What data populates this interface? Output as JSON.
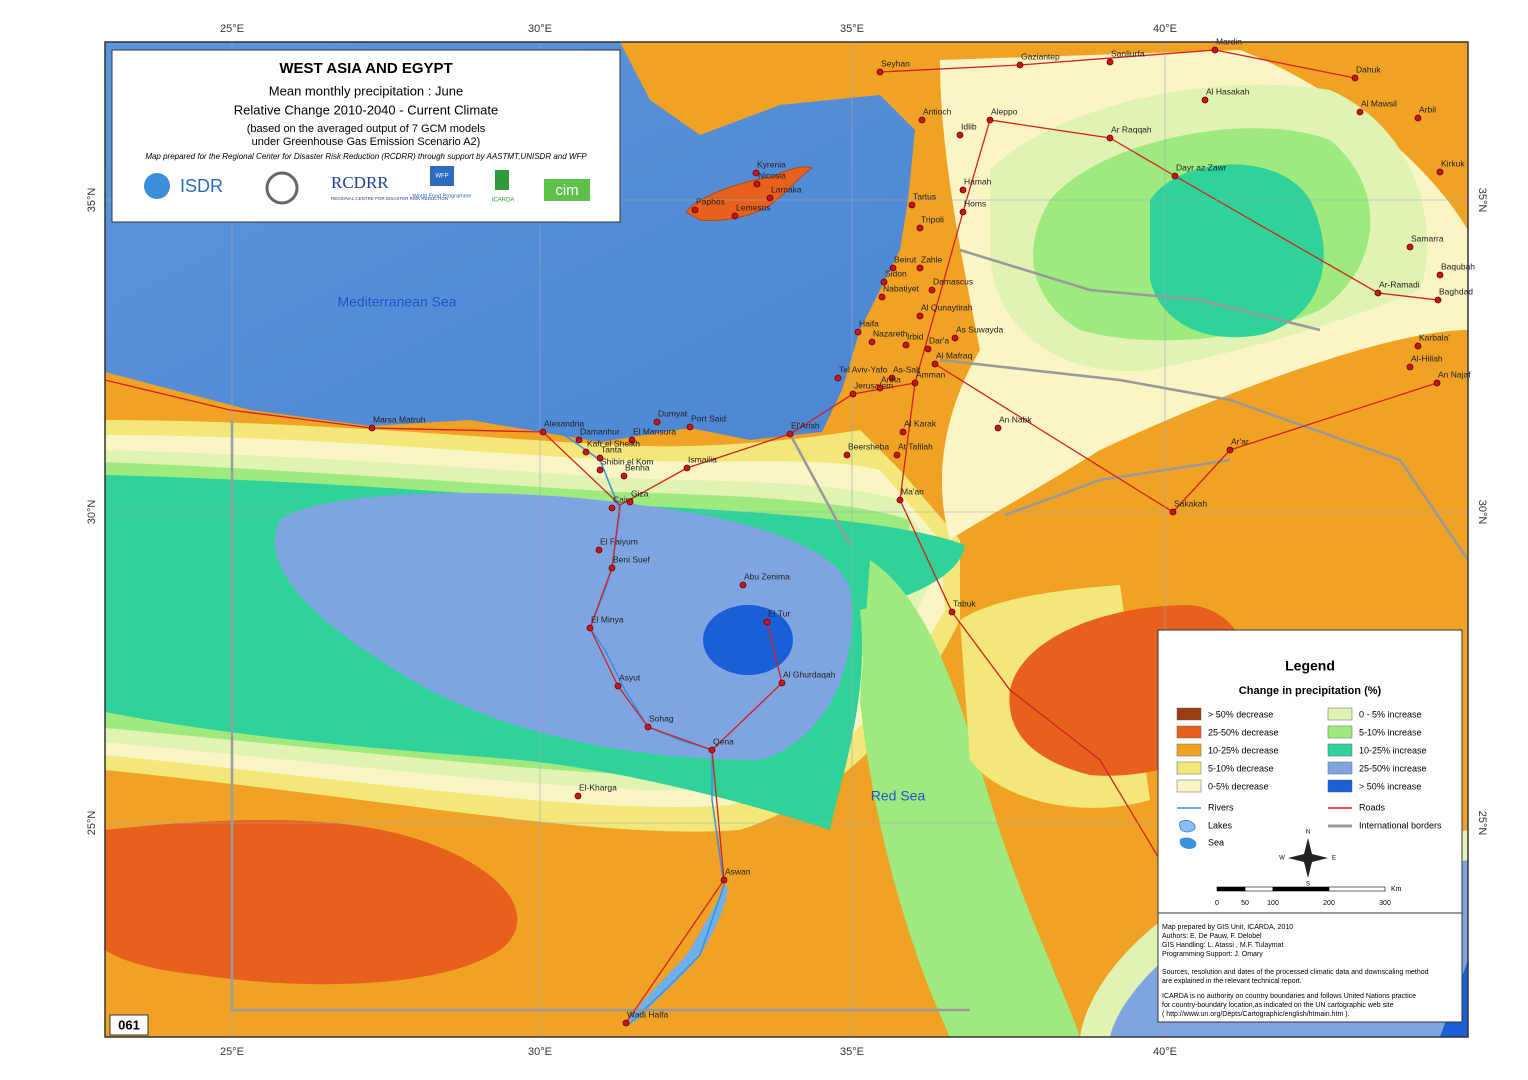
{
  "header": {
    "title": "WEST ASIA AND EGYPT",
    "subtitle": "Mean monthly precipitation : June",
    "scenario": "Relative Change 2010-2040 - Current Climate",
    "note_lines": [
      "(based on the averaged output of 7 GCM models",
      "under Greenhouse Gas Emission Scenario A2)"
    ],
    "credit": "Map prepared for the Regional Center for Disaster Risk Reduction (RCDRR) through support by AASTMT,UNISDR and WFP",
    "logos": [
      "ISDR",
      "RCDRR",
      "REGIONAL CENTRE FOR DISASTER RISK REDUCTION",
      "WFP",
      "World Food Programme",
      "ICARDA",
      "cim"
    ]
  },
  "map_number": "061",
  "axes": {
    "longitudes": [
      "25°E",
      "30°E",
      "35°E",
      "40°E"
    ],
    "latitudes": [
      "35°N",
      "30°N",
      "25°N"
    ]
  },
  "seas": [
    "Mediterranean Sea",
    "Red Sea"
  ],
  "places": [
    "Seyhan",
    "Gaziantep",
    "Sanliurfa",
    "Mardin",
    "Dahuk",
    "Al Hasakah",
    "Al Mawsil",
    "Arbil",
    "Aleppo",
    "Antioch",
    "Idlib",
    "Ar Raqqah",
    "Kirkuk",
    "Kyrenia",
    "Nicosia",
    "Larnaka",
    "Paphos",
    "Lemesos",
    "Dayr az Zawr",
    "Hamah",
    "Tartus",
    "Homs",
    "Tripoli",
    "Samarra",
    "Beirut",
    "Zahle",
    "Baqubah",
    "Sidon",
    "Damascus",
    "Ar-Ramadi",
    "Baghdad",
    "Nabatiyet",
    "Al Qunaytirah",
    "Haifa",
    "As Suwayda",
    "Nazareth",
    "Irbid",
    "Dar'a",
    "Karbala'",
    "Al Mafraq",
    "Al-Hillah",
    "Tel Aviv-Yafo",
    "As-Salt",
    "Amman",
    "An Najaf",
    "Jerusalem",
    "Ariha",
    "Dumyat",
    "Port Said",
    "Marsa Matruh",
    "Alexandria",
    "El'Arish",
    "An Nabk",
    "Beersheba",
    "Al Karak",
    "Damanhur",
    "El Mansura",
    "Ar'ar",
    "Kafr el Sheikh",
    "At Tafilah",
    "Tanta",
    "Ismailia",
    "Shibin el Kom",
    "Benha",
    "Ma'an",
    "Cairo",
    "Giza",
    "Sakakah",
    "El Faiyum",
    "Beni Suef",
    "Abu Zenima",
    "Tabuk",
    "El Tur",
    "El Minya",
    "Al Ghurdaqah",
    "Asyut",
    "Sohag",
    "Qena",
    "El-Kharga",
    "Aswan",
    "Wadi Halfa"
  ],
  "legend": {
    "title": "Legend",
    "subtitle": "Change in precipitation (%)",
    "classes": [
      {
        "label": "> 50% decrease",
        "color": "#9c3c12"
      },
      {
        "label": "25-50% decrease",
        "color": "#e8611c"
      },
      {
        "label": "10-25% decrease",
        "color": "#f0a224"
      },
      {
        "label": "5-10% decrease",
        "color": "#f3e77a"
      },
      {
        "label": "0-5% decrease",
        "color": "#faf5c4"
      },
      {
        "label": "0 - 5% increase",
        "color": "#e0f3b2"
      },
      {
        "label": "5-10% increase",
        "color": "#9fea7e"
      },
      {
        "label": "10-25% increase",
        "color": "#2fd39a"
      },
      {
        "label": "25-50% increase",
        "color": "#7ea5e2"
      },
      {
        "label": "> 50% increase",
        "color": "#1b5fd6"
      }
    ],
    "features": [
      "Rivers",
      "Lakes",
      "Sea",
      "Roads",
      "International borders"
    ],
    "compass": [
      "N",
      "E",
      "S",
      "W"
    ],
    "scale": {
      "ticks": [
        0,
        50,
        100,
        200,
        300
      ],
      "unit": "Km"
    },
    "credits": [
      "Map prepared by GIS Unit, ICARDA, 2010",
      "Authors: E. De Pauw, F. Delobel",
      "GIS Handling: L. Atassi , M.F. Tulaymat",
      "Programming Support: J. Omary",
      "Sources, resolution and dates of the processed climatic data and downscaling method",
      "are explained in the relevant technical report.",
      "ICARDA is no authority on country boundaries and follows United Nations practice",
      "for country-boundary location,as indicated on the UN cartographic web site",
      "( http://www.un.org/Depts/Cartographic/english/htmain.htm )."
    ]
  }
}
